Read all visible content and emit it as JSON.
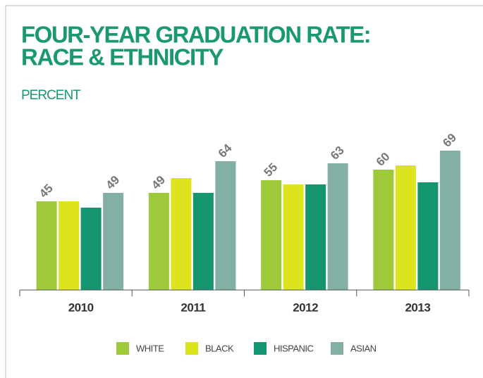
{
  "chart_data": {
    "type": "bar",
    "title": [
      "FOUR-YEAR GRADUATION RATE:",
      "RACE & ETHNICITY"
    ],
    "y_label": "PERCENT",
    "categories": [
      "2010",
      "2011",
      "2012",
      "2013"
    ],
    "series": [
      {
        "name": "WHITE",
        "color": "#9dc93b",
        "values": [
          45,
          49,
          55,
          60
        ],
        "show_labels": true
      },
      {
        "name": "BLACK",
        "color": "#dde31c",
        "values": [
          45,
          56,
          53,
          62
        ],
        "show_labels": false
      },
      {
        "name": "HISPANIC",
        "color": "#159570",
        "values": [
          42,
          49,
          53,
          54
        ],
        "show_labels": false
      },
      {
        "name": "ASIAN",
        "color": "#82b0a5",
        "values": [
          49,
          64,
          63,
          69
        ],
        "show_labels": true
      }
    ],
    "ylim": [
      3,
      70
    ],
    "legend": "bottom"
  }
}
